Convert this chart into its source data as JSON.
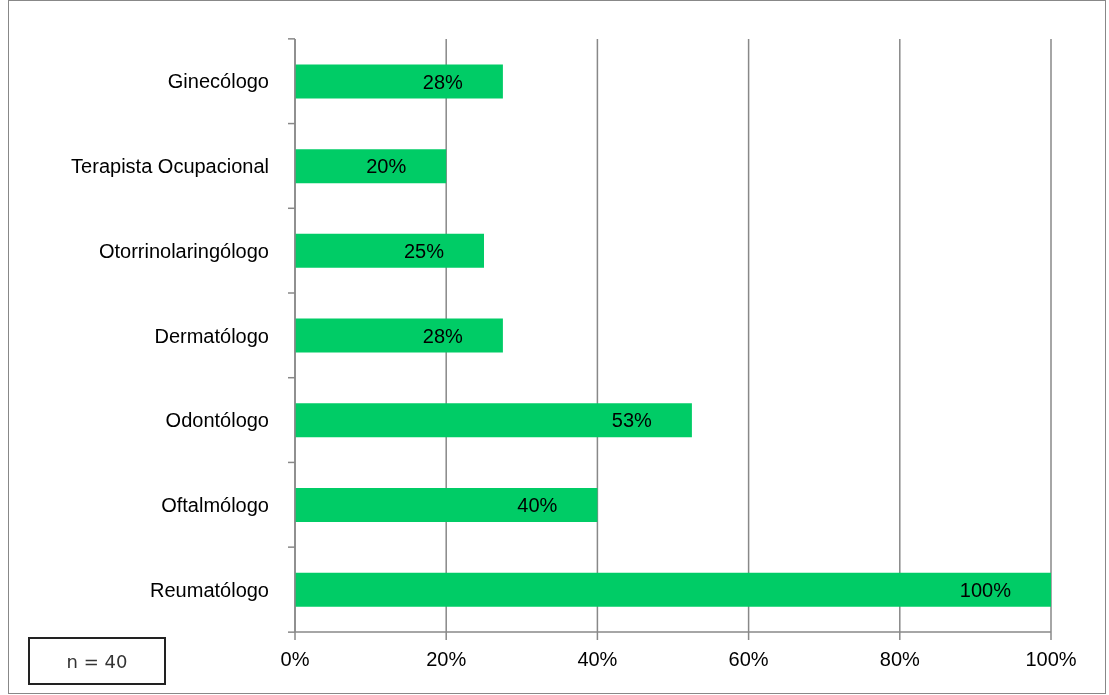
{
  "chart_data": {
    "type": "bar",
    "orientation": "horizontal",
    "categories": [
      "Ginecólogo",
      "Terapista Ocupacional",
      "Otorrinolaringólogo",
      "Dermatólogo",
      "Odontólogo",
      "Oftalmólogo",
      "Reumatólogo"
    ],
    "values": [
      27.5,
      20,
      25,
      27.5,
      52.5,
      40,
      100
    ],
    "value_labels": [
      "28%",
      "20%",
      "25%",
      "28%",
      "53%",
      "40%",
      "100%"
    ],
    "color": "#00cc66",
    "xlim": [
      0,
      100
    ],
    "xticks": [
      {
        "value": 0,
        "label": "0%"
      },
      {
        "value": 20,
        "label": "20%"
      },
      {
        "value": 40,
        "label": "40%"
      },
      {
        "value": 60,
        "label": "60%"
      },
      {
        "value": 80,
        "label": "80%"
      },
      {
        "value": 100,
        "label": "100%"
      }
    ],
    "grid": "x",
    "annotations": [
      "n = 40"
    ]
  }
}
